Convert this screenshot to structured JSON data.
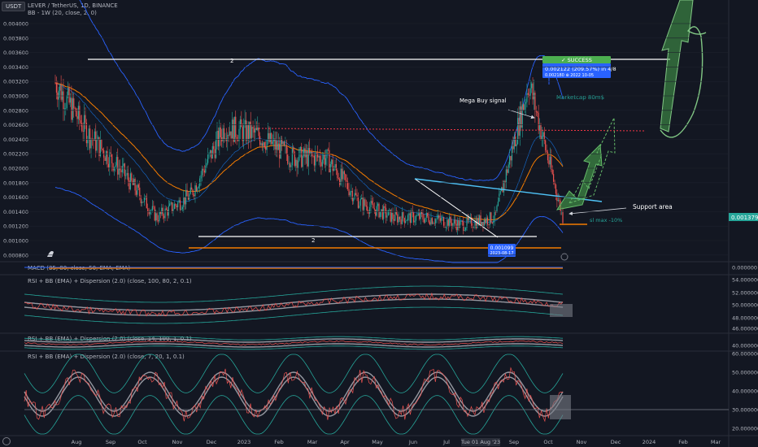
{
  "header": {
    "symbol_badge": "USDT",
    "title": "LEVER / TetherUS, 1D, BINANCE",
    "indicator": "BB - 1W (20, close, 2, 0)"
  },
  "panes": {
    "macd": "MACD (35, 80, close, 50, EMA, EMA)",
    "rsi1": "RSI + BB (EMA) + Dispersion (2.0) (close, 100, 80, 2, 0.1)",
    "rsi2": "RSI + BB (EMA) + Dispersion (2.0) (close, 14, 100, 1, 0.1)",
    "rsi3": "RSI + BB (EMA) + Dispersion (2.0) (close, 7, 20, 1, 0.1)"
  },
  "price_axis": {
    "ticks": [
      "0.004000",
      "0.003800",
      "0.003600",
      "0.003400",
      "0.003200",
      "0.003000",
      "0.002800",
      "0.002600",
      "0.002400",
      "0.002200",
      "0.002000",
      "0.001800",
      "0.001600",
      "0.001400",
      "0.001200",
      "0.001000",
      "0.000800"
    ],
    "current_price": "0.001379",
    "current_color": "#26a69a"
  },
  "sub_axes": {
    "macd": [
      "0.000000"
    ],
    "rsi1": [
      "54.000000",
      "52.000000",
      "50.000000",
      "48.000000",
      "46.000000"
    ],
    "rsi2": [
      "40.000000"
    ],
    "rsi3": [
      "60.000000",
      "50.000000",
      "40.000000",
      "30.000000",
      "20.000000"
    ]
  },
  "time_axis": [
    "Aug",
    "Sep",
    "Oct",
    "Nov",
    "Dec",
    "2023",
    "Feb",
    "Mar",
    "Apr",
    "May",
    "Jun",
    "Jul",
    "Tue 01 Aug '23",
    "Sep",
    "Oct",
    "Nov",
    "Dec",
    "2024",
    "Feb",
    "Mar"
  ],
  "annotations": {
    "success": "✓ SUCCESS",
    "gain": "0.002122 (209.57%) in 4/8",
    "gain_sub": "0.002180 ⊕ 2022 10-05",
    "marketcap": "Marketcap 80m$",
    "mega_buy": "Mega Buy signal",
    "support": "Support area",
    "sl": "sl max -10%",
    "low_price": "0.001099",
    "low_date": "2023-08-17",
    "marker_2a": "2",
    "marker_2b": "2"
  },
  "colors": {
    "up": "#26a69a",
    "down": "#ef5350",
    "bb": "#2962ff",
    "ema": "#f57c00",
    "white_line": "#ffffff",
    "red_dotted": "#f23645",
    "green_arrow": "#4caf50",
    "success_bg": "#4caf50",
    "info_bg": "#2962ff"
  },
  "chart_data": {
    "type": "candlestick",
    "title": "LEVER / TetherUS, 1D, BINANCE",
    "ylabel": "USDT",
    "ylim": [
      0.0007,
      0.0042
    ],
    "x": [
      "2022-08",
      "2022-09",
      "2022-10",
      "2022-11",
      "2022-12",
      "2023-01",
      "2023-02",
      "2023-03",
      "2023-04",
      "2023-05",
      "2023-06",
      "2023-07",
      "2023-08",
      "2023-09",
      "2023-10",
      "2023-11"
    ],
    "series": [
      {
        "values": [
          0.0031,
          0.0024,
          0.0019,
          0.0013,
          0.0016,
          0.0025,
          0.0024,
          0.0021,
          0.0021,
          0.0015,
          0.0013,
          0.0013,
          0.0012,
          0.0013,
          0.0031,
          0.0013
        ]
      }
    ],
    "levels": {
      "resistance": 0.0035,
      "dotted_resistance": 0.00253,
      "support_line": 0.00113,
      "orange_support": 0.00095,
      "current": 0.001379
    }
  }
}
